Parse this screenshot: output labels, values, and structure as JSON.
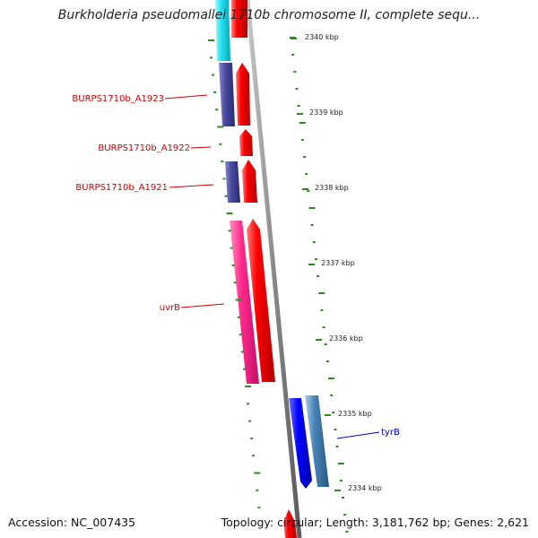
{
  "title": "Burkholderia pseudomallei 1710b chromosome II, complete sequ...",
  "footer": {
    "accession": "Accession: NC_007435",
    "summary": "Topology: circular; Length: 3,181,762 bp; Genes: 2,621"
  },
  "colors": {
    "backbone": "#8a8a8a",
    "tick": "#2e8b22",
    "cds_red": "#ff0000",
    "cds_cyan": "#22e0f0",
    "cds_purple": "#4a4aa0",
    "cds_pink": "#ff2a8a",
    "cds_blue": "#0000ff",
    "cds_steel": "#4682b4",
    "label_red": "#cc0000",
    "label_blue": "#0000cc"
  },
  "ticks": [
    {
      "label": "2340 kbp"
    },
    {
      "label": "2339 kbp"
    },
    {
      "label": "2338 kbp"
    },
    {
      "label": "2337 kbp"
    },
    {
      "label": "2336 kbp"
    },
    {
      "label": "2335 kbp"
    },
    {
      "label": "2334 kbp"
    }
  ],
  "gene_labels": [
    {
      "name": "BURPS1710b_A1923",
      "color": "#cc0000"
    },
    {
      "name": "BURPS1710b_A1922",
      "color": "#cc0000"
    },
    {
      "name": "BURPS1710b_A1921",
      "color": "#cc0000"
    },
    {
      "name": "uvrB",
      "color": "#cc0000"
    },
    {
      "name": "tyrB",
      "color": "#0000cc"
    }
  ]
}
